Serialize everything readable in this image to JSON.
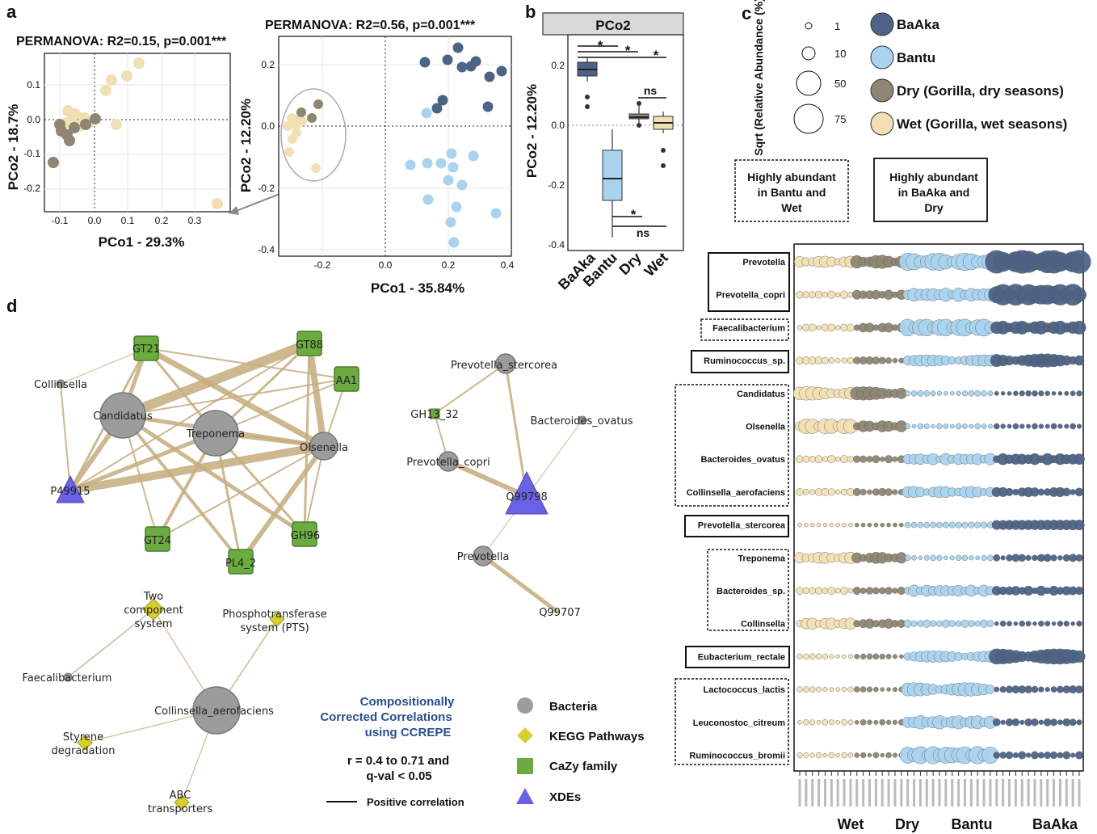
{
  "colors": {
    "baaka": "#4d6386",
    "bantu": "#a9d3ee",
    "dry": "#8e8672",
    "wet": "#f2dfb3",
    "edge": "#c4ac7c",
    "bacteria": "#9c9c9c",
    "kegg": "#d6cf2e",
    "cazy": "#6aac3f",
    "xde": "#6a62e6",
    "ccrepe": "#2a4f8c"
  },
  "panel_labels": {
    "a": "a",
    "b": "b",
    "c": "c",
    "d": "d"
  },
  "panel_a": {
    "left": {
      "title": "PERMANOVA: R2=0.15, p=0.001***",
      "xlabel": "PCo1 - 29.3%",
      "ylabel": "PCo2 - 18.7%",
      "xticks": [
        "-0.1",
        "0.0",
        "0.1",
        "0.2",
        "0.3"
      ],
      "yticks": [
        "0.1",
        "0.0",
        "-0.1",
        "-0.2"
      ]
    },
    "right": {
      "title": "PERMANOVA: R2=0.56, p=0.001***",
      "xlabel": "PCo1 - 35.84%",
      "ylabel": "PCo2 - 12.20%",
      "xticks": [
        "-0.2",
        "0.0",
        "0.2",
        "0.4"
      ],
      "yticks": [
        "0.2",
        "0.0",
        "-0.2",
        "-0.4"
      ]
    }
  },
  "panel_b": {
    "strip": "PCo2",
    "ylabel": "PCo2 - 12.20%",
    "yticks": [
      "0.2",
      "0.0",
      "-0.2",
      "-0.4"
    ],
    "categories": [
      "BaAka",
      "Bantu",
      "Dry",
      "Wet"
    ],
    "sig_labels": [
      "*",
      "*",
      "*",
      "ns",
      "*",
      "ns"
    ]
  },
  "panel_c": {
    "size_legend_title": "Sqrt (Relative Abundance (%)",
    "size_legend_values": [
      "1",
      "10",
      "50",
      "75"
    ],
    "groups": [
      "BaAka",
      "Bantu",
      "Dry (Gorilla, dry seasons)",
      "Wet (Gorilla, wet seasons)"
    ],
    "box_left": "Highly abundant in Bantu and Wet",
    "box_right": "Highly abundant in BaAka and Dry",
    "taxa": [
      "Prevotella",
      "Prevotella_copri",
      "Faecalibacterium",
      "Ruminococcus_sp.",
      "Candidatus",
      "Olsenella",
      "Bacteroides_ovatus",
      "Collinsella_aerofaciens",
      "Prevotella_stercorea",
      "Treponema",
      "Bacteroides_sp.",
      "Collinsella",
      "Eubacterium_rectale",
      "Lactococcus_lactis",
      "Leuconostoc_citreum",
      "Ruminococcus_bromii"
    ],
    "group_labels": [
      "Wet",
      "Dry",
      "Bantu",
      "BaAka"
    ]
  },
  "panel_d": {
    "nodes": {
      "GT21": "GT21",
      "GT88": "GT88",
      "AA1": "AA1",
      "Collinsella": "Collinsella",
      "Candidatus": "Candidatus",
      "Treponema": "Treponema",
      "Olsenella": "Olsenella",
      "P49915": "P49915",
      "GT24": "GT24",
      "PL4_2": "PL4_2",
      "GH96": "GH96",
      "Prevotella_stercorea": "Prevotella_stercorea",
      "GH13_32": "GH13_32",
      "Bacteroides_ovatus": "Bacteroides_ovatus",
      "Prevotella_copri": "Prevotella_copri",
      "Q99798": "Q99798",
      "Prevotella": "Prevotella",
      "Q99707": "Q99707",
      "TwoComp1": "Two",
      "TwoComp2": "component",
      "TwoComp3": "system",
      "PTS1": "Phosphotransferase",
      "PTS2": "system (PTS)",
      "Faecalibacterium": "Faecalibacterium",
      "Collinsella_aerofaciens": "Collinsella_aerofaciens",
      "Styrene1": "Styrene",
      "Styrene2": "degradation",
      "ABC1": "ABC",
      "ABC2": "transporters"
    },
    "ccrepe_title": [
      "Compositionally",
      "Corrected Correlations",
      "using CCREPE"
    ],
    "threshold": [
      "r = 0.4 to 0.71 and",
      "q-val < 0.05"
    ],
    "positive_label": "Positive correlation",
    "legend": [
      "Bacteria",
      "KEGG Pathways",
      "CaZy family",
      "XDEs"
    ]
  }
}
